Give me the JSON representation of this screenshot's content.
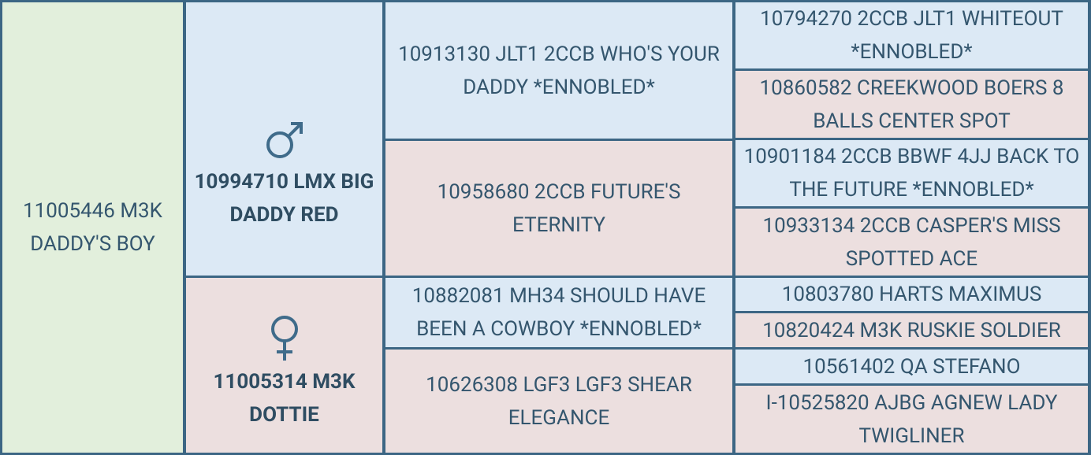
{
  "subject": "11005446 M3K DADDY'S BOY",
  "sire": "10994710 LMX BIG DADDY RED",
  "dam": "11005314 M3K DOTTIE",
  "grandparents": [
    "10913130 JLT1 2CCB WHO'S YOUR DADDY *ENNOBLED*",
    "10958680 2CCB FUTURE'S ETERNITY",
    "10882081 MH34 SHOULD HAVE BEEN A COWBOY *ENNOBLED*",
    "10626308 LGF3 LGF3 SHEAR ELEGANCE"
  ],
  "great_grandparents": [
    "10794270 2CCB JLT1 WHITEOUT *ENNOBLED*",
    "10860582 CREEKWOOD BOERS 8 BALLS CENTER SPOT",
    "10901184 2CCB BBWF 4JJ BACK TO THE FUTURE *ENNOBLED*",
    "10933134 2CCB CASPER'S MISS SPOTTED ACE",
    "10803780 HARTS MAXIMUS",
    "10820424 M3K RUSKIE SOLDIER",
    "10561402 QA STEFANO",
    "I-10525820 AJBG AGNEW LADY TWIGLINER"
  ]
}
